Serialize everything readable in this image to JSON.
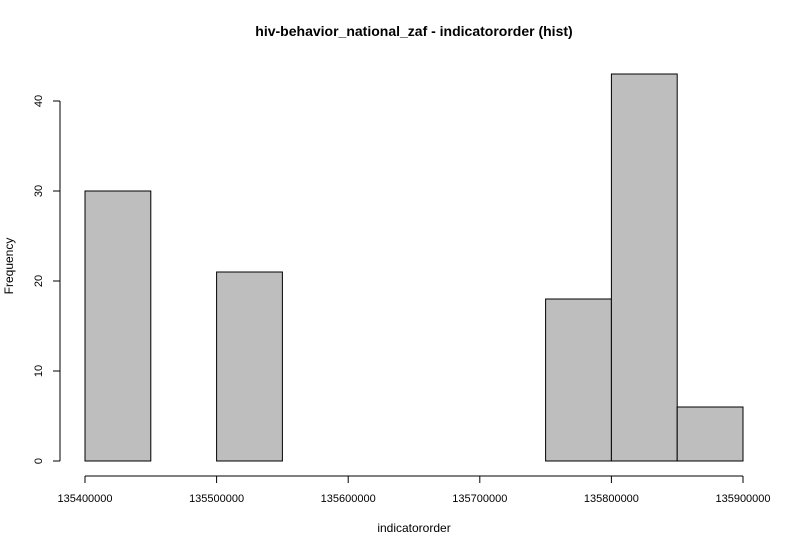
{
  "chart_data": {
    "type": "bar",
    "title": "hiv-behavior_national_zaf - indicatororder (hist)",
    "xlabel": "indicatororder",
    "ylabel": "Frequency",
    "bins": [
      {
        "start": 135400000,
        "end": 135450000,
        "count": 30
      },
      {
        "start": 135450000,
        "end": 135500000,
        "count": 0
      },
      {
        "start": 135500000,
        "end": 135550000,
        "count": 21
      },
      {
        "start": 135550000,
        "end": 135600000,
        "count": 0
      },
      {
        "start": 135600000,
        "end": 135650000,
        "count": 0
      },
      {
        "start": 135650000,
        "end": 135700000,
        "count": 0
      },
      {
        "start": 135700000,
        "end": 135750000,
        "count": 0
      },
      {
        "start": 135750000,
        "end": 135800000,
        "count": 18
      },
      {
        "start": 135800000,
        "end": 135850000,
        "count": 43
      },
      {
        "start": 135850000,
        "end": 135900000,
        "count": 6
      }
    ],
    "xlim": [
      135400000,
      135900000
    ],
    "ylim": [
      0,
      43
    ],
    "x_ticks": [
      {
        "value": 135400000,
        "label": "135400000"
      },
      {
        "value": 135500000,
        "label": "135500000"
      },
      {
        "value": 135600000,
        "label": "135600000"
      },
      {
        "value": 135700000,
        "label": "135700000"
      },
      {
        "value": 135800000,
        "label": "135800000"
      },
      {
        "value": 135900000,
        "label": "135900000"
      }
    ],
    "y_ticks": [
      {
        "value": 0,
        "label": "0"
      },
      {
        "value": 10,
        "label": "10"
      },
      {
        "value": 20,
        "label": "20"
      },
      {
        "value": 30,
        "label": "30"
      },
      {
        "value": 40,
        "label": "40"
      }
    ],
    "grid": false,
    "legend": "none",
    "colors": {
      "bar_fill": "#bebebe",
      "bar_stroke": "#000000"
    }
  }
}
